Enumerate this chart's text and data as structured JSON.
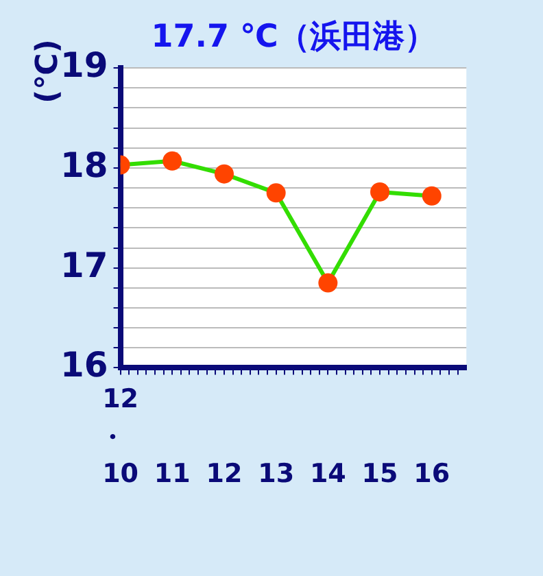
{
  "chart_data": {
    "type": "line",
    "title": "17.7 ℃（浜田港）",
    "ylabel": "(℃)",
    "annotations": [
      "12・"
    ],
    "x": [
      10,
      11,
      12,
      13,
      14,
      15,
      16
    ],
    "series": [
      {
        "color": "#33dd00",
        "colors": [
          "#ff4400",
          "#ff4400",
          "#ff4400",
          "#ff4400",
          "#ff4400",
          "#ff4400",
          "#ff4400"
        ],
        "values": [
          18.03,
          18.07,
          17.94,
          17.75,
          16.85,
          17.76,
          17.72
        ]
      }
    ],
    "marker": "circle",
    "line_style": "solid",
    "grid": "y",
    "legend": false,
    "xlim": [
      10,
      16.667
    ],
    "xticks": [
      10,
      {
        "value": 10.167,
        "label": null
      },
      {
        "value": 10.333,
        "label": null
      },
      {
        "value": 10.5,
        "label": null
      },
      {
        "value": 10.667,
        "label": null
      },
      {
        "value": 10.833,
        "label": null
      },
      11,
      {
        "value": 11.167,
        "label": null
      },
      {
        "value": 11.333,
        "label": null
      },
      {
        "value": 11.5,
        "label": null
      },
      {
        "value": 11.667,
        "label": null
      },
      {
        "value": 11.833,
        "label": null
      },
      12,
      {
        "value": 12.167,
        "label": null
      },
      {
        "value": 12.333,
        "label": null
      },
      {
        "value": 12.5,
        "label": null
      },
      {
        "value": 12.667,
        "label": null
      },
      {
        "value": 12.833,
        "label": null
      },
      13,
      {
        "value": 13.167,
        "label": null
      },
      {
        "value": 13.333,
        "label": null
      },
      {
        "value": 13.5,
        "label": null
      },
      {
        "value": 13.667,
        "label": null
      },
      {
        "value": 13.833,
        "label": null
      },
      14,
      {
        "value": 14.167,
        "label": null
      },
      {
        "value": 14.333,
        "label": null
      },
      {
        "value": 14.5,
        "label": null
      },
      {
        "value": 14.667,
        "label": null
      },
      {
        "value": 14.833,
        "label": null
      },
      15,
      {
        "value": 15.167,
        "label": null
      },
      {
        "value": 15.333,
        "label": null
      },
      {
        "value": 15.5,
        "label": null
      },
      {
        "value": 15.667,
        "label": null
      },
      {
        "value": 15.833,
        "label": null
      },
      16,
      {
        "value": 16.167,
        "label": null
      },
      {
        "value": 16.333,
        "label": null
      },
      {
        "value": 16.5,
        "label": null
      }
    ],
    "ylim": [
      16,
      19
    ],
    "yticks": [
      16,
      {
        "value": 16.2,
        "label": null
      },
      {
        "value": 16.4,
        "label": null
      },
      {
        "value": 16.6,
        "label": null
      },
      {
        "value": 16.8,
        "label": null
      },
      17,
      {
        "value": 17.2,
        "label": null
      },
      {
        "value": 17.4,
        "label": null
      },
      {
        "value": 17.6,
        "label": null
      },
      {
        "value": 17.8,
        "label": null
      },
      18,
      {
        "value": 18.2,
        "label": null
      },
      {
        "value": 18.4,
        "label": null
      },
      {
        "value": 18.6,
        "label": null
      },
      {
        "value": 18.8,
        "label": null
      },
      19
    ]
  }
}
